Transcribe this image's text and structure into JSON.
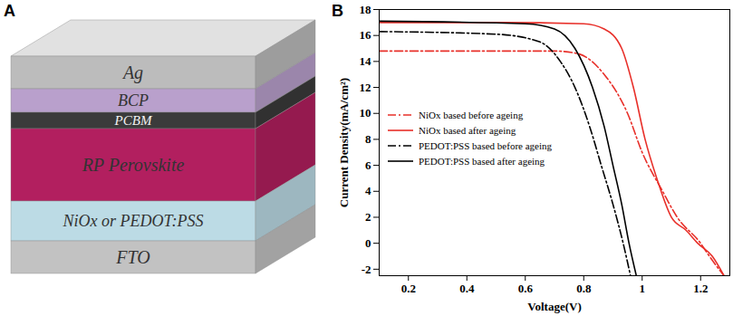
{
  "diagram": {
    "label": "A",
    "layers": [
      "Ag",
      "BCP",
      "PCBM",
      "RP Perovskite",
      "NiOx or PEDOT:PSS",
      "FTO"
    ]
  },
  "chart_data": {
    "panel": "B",
    "type": "line",
    "x_label": "Voltage(V)",
    "y_label": "Current Density(mA/cm²)",
    "xlim": [
      0.1,
      1.3
    ],
    "xticks": [
      0.2,
      0.4,
      0.6,
      0.8,
      1.0,
      1.2
    ],
    "ylim": [
      -2.5,
      18
    ],
    "yticks": [
      -2,
      0,
      2,
      4,
      6,
      8,
      10,
      12,
      14,
      16,
      18
    ],
    "grid": false,
    "legend": "lower left",
    "series": [
      {
        "name": "NiOx based before ageing",
        "color": "#e8302a",
        "line_style": "dashdot",
        "x": [
          0.1,
          0.4,
          0.7,
          0.78,
          0.87,
          0.95,
          1.0,
          1.07,
          1.12,
          1.2,
          1.23,
          1.28
        ],
        "values": [
          14.8,
          14.8,
          14.8,
          14.6,
          13,
          10,
          7,
          4,
          2,
          0,
          -1,
          -2.5
        ]
      },
      {
        "name": "NiOx based after ageing",
        "color": "#e8302a",
        "line_style": "solid",
        "x": [
          0.1,
          0.5,
          0.8,
          0.87,
          0.93,
          0.97,
          1.01,
          1.05,
          1.1,
          1.15,
          1.19,
          1.24,
          1.28
        ],
        "values": [
          17.0,
          17.0,
          16.9,
          16.5,
          15,
          12,
          8,
          5,
          2,
          1,
          0,
          -1,
          -2.5
        ]
      },
      {
        "name": "PEDOT:PSS based before ageing",
        "color": "#000000",
        "line_style": "dashdot",
        "x": [
          0.1,
          0.5,
          0.65,
          0.72,
          0.77,
          0.82,
          0.86,
          0.9,
          0.935,
          0.96
        ],
        "values": [
          16.3,
          16.1,
          15.5,
          14,
          12,
          9,
          6,
          3,
          0,
          -2.5
        ]
      },
      {
        "name": "PEDOT:PSS based after ageing",
        "color": "#000000",
        "line_style": "solid",
        "x": [
          0.1,
          0.6,
          0.7,
          0.77,
          0.83,
          0.87,
          0.9,
          0.93,
          0.955,
          0.98
        ],
        "values": [
          17.1,
          16.9,
          16.5,
          15,
          12,
          9,
          6,
          3,
          0,
          -2.5
        ]
      }
    ]
  }
}
